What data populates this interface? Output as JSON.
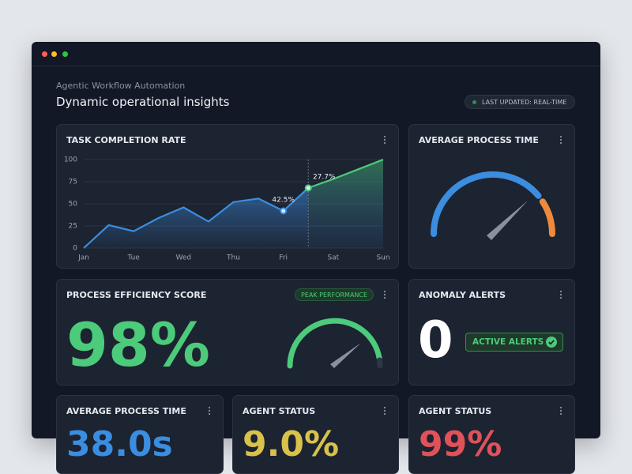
{
  "window": {
    "subtitle": "Agentic Workflow Automation",
    "title": "Dynamic operational insights",
    "status_badge": "LAST UPDATED: REAL-TIME"
  },
  "chart_data": {
    "type": "area",
    "title": "TASK COMPLETION RATE",
    "categories": [
      "Jan",
      null,
      "Tue",
      null,
      "Wed",
      null,
      "Thu",
      null,
      "Fri",
      null,
      "Sat",
      null,
      "Sun"
    ],
    "series": [
      {
        "name": "Task completion rate",
        "color": "#3b8de0",
        "accent_color": "#4ccb7a",
        "values": [
          0,
          26,
          19,
          34,
          46,
          30,
          52,
          56,
          42,
          68,
          78,
          89,
          100
        ]
      }
    ],
    "annotations": [
      {
        "text": "42.5%"
      },
      {
        "text": "27.7%"
      }
    ],
    "ylim": [
      0,
      100
    ],
    "yticks": [
      0,
      25,
      50,
      75,
      100
    ],
    "grid": true
  },
  "cards": {
    "process_time": {
      "title": "AVERAGE PROCESS TIME"
    },
    "efficiency": {
      "title": "PROCESS EFFICIENCY SCORE",
      "badge": "PEAK PERFORMANCE",
      "value": "98%"
    },
    "anomaly": {
      "title": "ANOMALY ALERTS",
      "value": "0",
      "badge": "ACTIVE ALERTS"
    },
    "bottom": [
      {
        "title": "AVERAGE PROCESS TIME",
        "value": "38.0s"
      },
      {
        "title": "AGENT STATUS",
        "value": "9.0%"
      },
      {
        "title": "AGENT STATUS",
        "value": "99%"
      }
    ]
  }
}
